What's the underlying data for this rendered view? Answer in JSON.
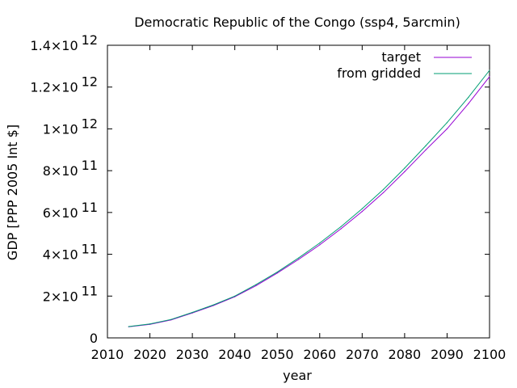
{
  "chart_data": {
    "type": "line",
    "title": "Democratic Republic of the Congo (ssp4, 5arcmin)",
    "xlabel": "year",
    "ylabel": "GDP [PPP 2005 Int $]",
    "xlim": [
      2010,
      2100
    ],
    "ylim": [
      0,
      1400000000000.0
    ],
    "x_ticks": [
      {
        "value": 2010,
        "label": "2010"
      },
      {
        "value": 2020,
        "label": "2020"
      },
      {
        "value": 2030,
        "label": "2030"
      },
      {
        "value": 2040,
        "label": "2040"
      },
      {
        "value": 2050,
        "label": "2050"
      },
      {
        "value": 2060,
        "label": "2060"
      },
      {
        "value": 2070,
        "label": "2070"
      },
      {
        "value": 2080,
        "label": "2080"
      },
      {
        "value": 2090,
        "label": "2090"
      },
      {
        "value": 2100,
        "label": "2100"
      }
    ],
    "y_ticks": [
      {
        "value": 0,
        "label": "0",
        "exp": ""
      },
      {
        "value": 200000000000.0,
        "label": "2×10",
        "exp": "11"
      },
      {
        "value": 400000000000.0,
        "label": "4×10",
        "exp": "11"
      },
      {
        "value": 600000000000.0,
        "label": "6×10",
        "exp": "11"
      },
      {
        "value": 800000000000.0,
        "label": "8×10",
        "exp": "11"
      },
      {
        "value": 1000000000000.0,
        "label": "1×10",
        "exp": "12"
      },
      {
        "value": 1200000000000.0,
        "label": "1.2×10",
        "exp": "12"
      },
      {
        "value": 1400000000000.0,
        "label": "1.4×10",
        "exp": "12"
      }
    ],
    "grid": false,
    "legend_position": "top-right",
    "series": [
      {
        "name": "target",
        "color": "#9400d3",
        "x": [
          2015,
          2020,
          2025,
          2030,
          2035,
          2040,
          2045,
          2050,
          2055,
          2060,
          2065,
          2070,
          2075,
          2080,
          2085,
          2090,
          2095,
          2100
        ],
        "y": [
          53000000000.0,
          65000000000.0,
          86000000000.0,
          119000000000.0,
          155000000000.0,
          197000000000.0,
          250000000000.0,
          310000000000.0,
          375000000000.0,
          445000000000.0,
          522000000000.0,
          605000000000.0,
          695000000000.0,
          795000000000.0,
          900000000000.0,
          1000000000000.0,
          1120000000000.0,
          1250000000000.0
        ]
      },
      {
        "name": "from gridded",
        "color": "#009e73",
        "x": [
          2015,
          2020,
          2025,
          2030,
          2035,
          2040,
          2045,
          2050,
          2055,
          2060,
          2065,
          2070,
          2075,
          2080,
          2085,
          2090,
          2095,
          2100
        ],
        "y": [
          54000000000.0,
          67000000000.0,
          88000000000.0,
          122000000000.0,
          158000000000.0,
          200000000000.0,
          255000000000.0,
          315000000000.0,
          382000000000.0,
          454000000000.0,
          532000000000.0,
          618000000000.0,
          710000000000.0,
          812000000000.0,
          920000000000.0,
          1030000000000.0,
          1150000000000.0,
          1280000000000.0
        ]
      }
    ]
  }
}
